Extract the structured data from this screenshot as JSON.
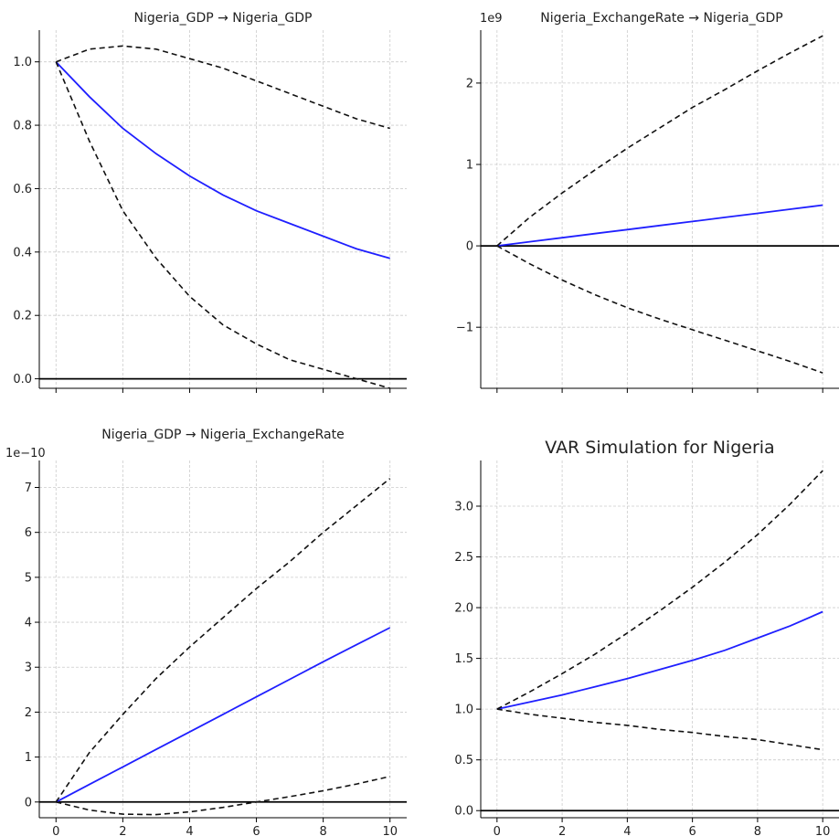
{
  "colors": {
    "irf_line": "#1f1fff",
    "confidence_band": "#111111",
    "zero_line": "#000000",
    "grid": "#cccccc",
    "axis": "#000000"
  },
  "chart_data": [
    {
      "type": "line",
      "title": "Nigeria_GDP → Nigeria_GDP",
      "scale_label": "",
      "xlim": [
        -0.5,
        10.5
      ],
      "ylim": [
        -0.03,
        1.1
      ],
      "xticks": [
        0,
        2,
        4,
        6,
        8,
        10
      ],
      "xtick_labels": [
        "",
        "",
        "",
        "",
        "",
        ""
      ],
      "yticks": [
        0.0,
        0.2,
        0.4,
        0.6,
        0.8,
        1.0
      ],
      "ytick_labels": [
        "0.0",
        "0.2",
        "0.4",
        "0.6",
        "0.8",
        "1.0"
      ],
      "grid": true,
      "zero_line": true,
      "x": [
        0,
        1,
        2,
        3,
        4,
        5,
        6,
        7,
        8,
        9,
        10
      ],
      "series": [
        {
          "role": "response",
          "style": "solid",
          "values": [
            1.0,
            0.89,
            0.79,
            0.71,
            0.64,
            0.58,
            0.53,
            0.49,
            0.45,
            0.41,
            0.38
          ]
        },
        {
          "role": "upper",
          "style": "dashed",
          "values": [
            1.0,
            1.04,
            1.05,
            1.04,
            1.01,
            0.98,
            0.94,
            0.9,
            0.86,
            0.82,
            0.79
          ]
        },
        {
          "role": "lower",
          "style": "dashed",
          "values": [
            1.0,
            0.75,
            0.53,
            0.38,
            0.26,
            0.17,
            0.11,
            0.06,
            0.03,
            0.0,
            -0.03
          ]
        }
      ]
    },
    {
      "type": "line",
      "title": "Nigeria_ExchangeRate → Nigeria_GDP",
      "scale_label": "1e9",
      "xlim": [
        -0.5,
        10.5
      ],
      "ylim": [
        -1.75,
        2.65
      ],
      "xticks": [
        0,
        2,
        4,
        6,
        8,
        10
      ],
      "xtick_labels": [
        "",
        "",
        "",
        "",
        "",
        ""
      ],
      "yticks": [
        -1,
        0,
        1,
        2
      ],
      "ytick_labels": [
        "−1",
        "0",
        "1",
        "2"
      ],
      "grid": true,
      "zero_line": true,
      "x": [
        0,
        1,
        2,
        3,
        4,
        5,
        6,
        7,
        8,
        9,
        10
      ],
      "series": [
        {
          "role": "response",
          "style": "solid",
          "values": [
            0.0,
            0.05,
            0.1,
            0.15,
            0.2,
            0.25,
            0.3,
            0.35,
            0.4,
            0.45,
            0.5
          ]
        },
        {
          "role": "upper",
          "style": "dashed",
          "values": [
            0.0,
            0.35,
            0.65,
            0.93,
            1.2,
            1.45,
            1.7,
            1.92,
            2.15,
            2.37,
            2.58
          ]
        },
        {
          "role": "lower",
          "style": "dashed",
          "values": [
            0.0,
            -0.22,
            -0.42,
            -0.6,
            -0.76,
            -0.9,
            -1.03,
            -1.16,
            -1.29,
            -1.42,
            -1.56
          ]
        }
      ]
    },
    {
      "type": "line",
      "title": "Nigeria_GDP → Nigeria_ExchangeRate",
      "scale_label": "1e−10",
      "xlim": [
        -0.5,
        10.5
      ],
      "ylim": [
        -0.35,
        7.6
      ],
      "xticks": [
        0,
        2,
        4,
        6,
        8,
        10
      ],
      "xtick_labels": [
        "0",
        "2",
        "4",
        "6",
        "8",
        "10"
      ],
      "yticks": [
        0,
        1,
        2,
        3,
        4,
        5,
        6,
        7
      ],
      "ytick_labels": [
        "0",
        "1",
        "2",
        "3",
        "4",
        "5",
        "6",
        "7"
      ],
      "grid": true,
      "zero_line": true,
      "x": [
        0,
        1,
        2,
        3,
        4,
        5,
        6,
        7,
        8,
        9,
        10
      ],
      "series": [
        {
          "role": "response",
          "style": "solid",
          "values": [
            0.0,
            0.39,
            0.78,
            1.17,
            1.56,
            1.95,
            2.34,
            2.73,
            3.12,
            3.5,
            3.88
          ]
        },
        {
          "role": "upper",
          "style": "dashed",
          "values": [
            0.0,
            1.1,
            1.95,
            2.75,
            3.45,
            4.1,
            4.75,
            5.35,
            6.0,
            6.6,
            7.2
          ]
        },
        {
          "role": "lower",
          "style": "dashed",
          "values": [
            0.0,
            -0.18,
            -0.27,
            -0.28,
            -0.22,
            -0.12,
            0.0,
            0.12,
            0.25,
            0.4,
            0.57
          ]
        }
      ]
    },
    {
      "type": "line",
      "title": "VAR Simulation for Nigeria",
      "scale_label": "",
      "xlim": [
        -0.5,
        10.5
      ],
      "ylim": [
        -0.07,
        3.45
      ],
      "xticks": [
        0,
        2,
        4,
        6,
        8,
        10
      ],
      "xtick_labels": [
        "0",
        "2",
        "4",
        "6",
        "8",
        "10"
      ],
      "yticks": [
        0.0,
        0.5,
        1.0,
        1.5,
        2.0,
        2.5,
        3.0
      ],
      "ytick_labels": [
        "0.0",
        "0.5",
        "1.0",
        "1.5",
        "2.0",
        "2.5",
        "3.0"
      ],
      "grid": true,
      "zero_line": true,
      "x": [
        0,
        1,
        2,
        3,
        4,
        5,
        6,
        7,
        8,
        9,
        10
      ],
      "series": [
        {
          "role": "response",
          "style": "solid",
          "values": [
            1.0,
            1.07,
            1.14,
            1.22,
            1.3,
            1.39,
            1.48,
            1.58,
            1.7,
            1.82,
            1.96
          ]
        },
        {
          "role": "upper",
          "style": "dashed",
          "values": [
            1.0,
            1.17,
            1.35,
            1.54,
            1.75,
            1.97,
            2.2,
            2.45,
            2.72,
            3.02,
            3.35
          ]
        },
        {
          "role": "lower",
          "style": "dashed",
          "values": [
            1.0,
            0.95,
            0.91,
            0.87,
            0.84,
            0.8,
            0.77,
            0.73,
            0.7,
            0.65,
            0.6
          ]
        }
      ]
    }
  ]
}
